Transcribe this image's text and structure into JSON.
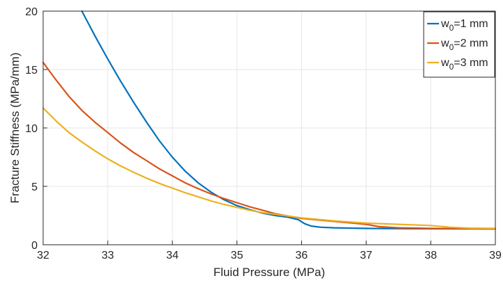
{
  "chart_data": {
    "type": "line",
    "xlabel": "Fluid Pressure (MPa)",
    "ylabel": "Fracture Stiffness (MPa/mm)",
    "xlim": [
      32,
      39
    ],
    "ylim": [
      0,
      20
    ],
    "xticks": [
      "32",
      "33",
      "34",
      "35",
      "36",
      "37",
      "38",
      "39"
    ],
    "yticks": [
      "0",
      "5",
      "10",
      "15",
      "20"
    ],
    "grid": true,
    "legend_position": "top-right",
    "series": [
      {
        "name": "w0=1 mm",
        "legend_base": "w",
        "legend_sub": "0",
        "legend_rest": "=1 mm",
        "color": "#0072BD",
        "x": [
          32.6,
          32.8,
          33.0,
          33.2,
          33.4,
          33.6,
          33.8,
          34.0,
          34.2,
          34.4,
          34.6,
          34.8,
          35.0,
          35.2,
          35.4,
          35.6,
          35.8,
          35.95,
          36.05,
          36.15,
          36.3,
          36.5,
          37.0,
          37.5,
          38.0,
          38.5,
          39.0
        ],
        "y": [
          20.0,
          17.9,
          15.9,
          14.0,
          12.2,
          10.5,
          8.9,
          7.5,
          6.3,
          5.3,
          4.5,
          3.85,
          3.35,
          3.0,
          2.7,
          2.5,
          2.35,
          2.15,
          1.8,
          1.6,
          1.5,
          1.45,
          1.4,
          1.38,
          1.37,
          1.36,
          1.35
        ]
      },
      {
        "name": "w0=2 mm",
        "legend_base": "w",
        "legend_sub": "0",
        "legend_rest": "=2 mm",
        "color": "#D95319",
        "x": [
          32.0,
          32.2,
          32.4,
          32.6,
          32.8,
          33.0,
          33.2,
          33.4,
          33.6,
          33.8,
          34.0,
          34.2,
          34.4,
          34.6,
          34.8,
          35.0,
          35.2,
          35.4,
          35.6,
          35.8,
          36.0,
          36.5,
          37.0,
          37.2,
          37.5,
          38.0,
          38.5,
          39.0
        ],
        "y": [
          15.6,
          14.1,
          12.7,
          11.5,
          10.5,
          9.6,
          8.7,
          7.9,
          7.2,
          6.5,
          5.9,
          5.3,
          4.8,
          4.35,
          3.95,
          3.6,
          3.25,
          2.95,
          2.65,
          2.45,
          2.25,
          2.0,
          1.75,
          1.55,
          1.45,
          1.4,
          1.38,
          1.36
        ]
      },
      {
        "name": "w0=3 mm",
        "legend_base": "w",
        "legend_sub": "0",
        "legend_rest": "=3 mm",
        "color": "#EDB120",
        "x": [
          32.0,
          32.2,
          32.4,
          32.6,
          32.8,
          33.0,
          33.2,
          33.4,
          33.6,
          33.8,
          34.0,
          34.2,
          34.4,
          34.6,
          34.8,
          35.0,
          35.2,
          35.4,
          35.6,
          35.8,
          36.0,
          36.5,
          37.0,
          37.5,
          38.0,
          38.3,
          38.6,
          39.0
        ],
        "y": [
          11.7,
          10.6,
          9.6,
          8.8,
          8.05,
          7.35,
          6.75,
          6.2,
          5.7,
          5.25,
          4.85,
          4.45,
          4.1,
          3.75,
          3.45,
          3.2,
          2.95,
          2.75,
          2.6,
          2.45,
          2.3,
          2.05,
          1.85,
          1.75,
          1.65,
          1.5,
          1.42,
          1.4
        ]
      }
    ]
  }
}
